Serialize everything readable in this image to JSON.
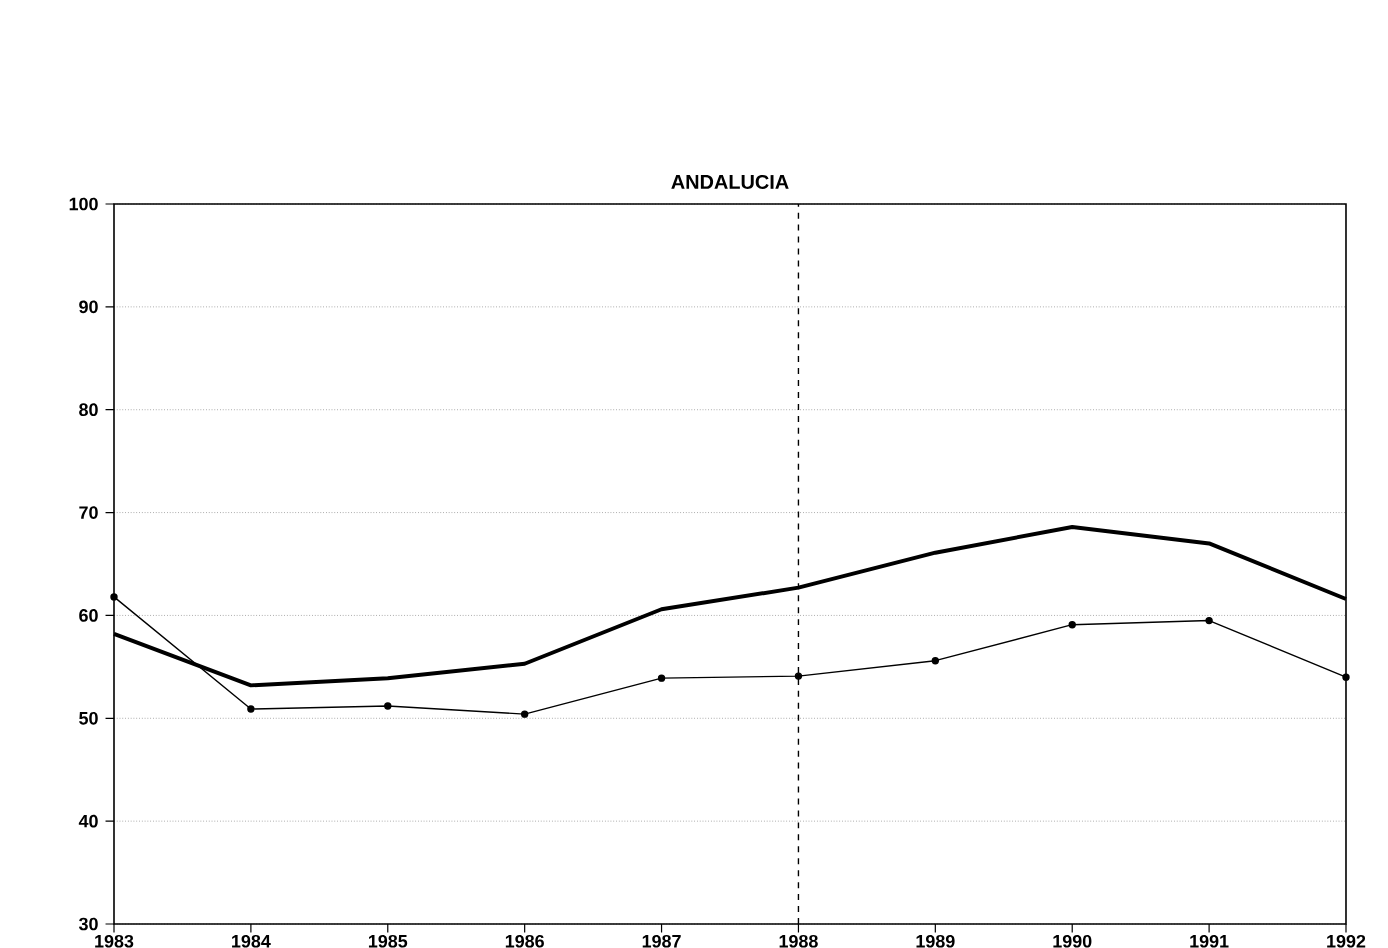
{
  "chart_data": {
    "type": "line",
    "title": "ANDALUCIA",
    "x": [
      1983,
      1984,
      1985,
      1986,
      1987,
      1988,
      1989,
      1990,
      1991,
      1992
    ],
    "series": [
      {
        "color": "#000000",
        "values": [
          58.2,
          53.2,
          53.9,
          55.3,
          60.6,
          62.7,
          66.1,
          68.6,
          67.0,
          61.6
        ],
        "marker": "none"
      },
      {
        "color": "#000000",
        "values": [
          61.8,
          50.9,
          51.2,
          50.4,
          53.9,
          54.1,
          55.6,
          59.1,
          59.5,
          54.0
        ],
        "marker": "circle"
      }
    ],
    "xlim": [
      1983,
      1992
    ],
    "xticks": [
      1983,
      1984,
      1985,
      1986,
      1987,
      1988,
      1989,
      1990,
      1991,
      1992
    ],
    "ylim": [
      30,
      100
    ],
    "yticks": [
      30,
      40,
      50,
      60,
      70,
      80,
      90,
      100
    ],
    "grid": "y",
    "line_style": "solid",
    "ref_lines": [
      {
        "axis": "x",
        "value": 1988,
        "line_style": "dashed"
      }
    ]
  }
}
